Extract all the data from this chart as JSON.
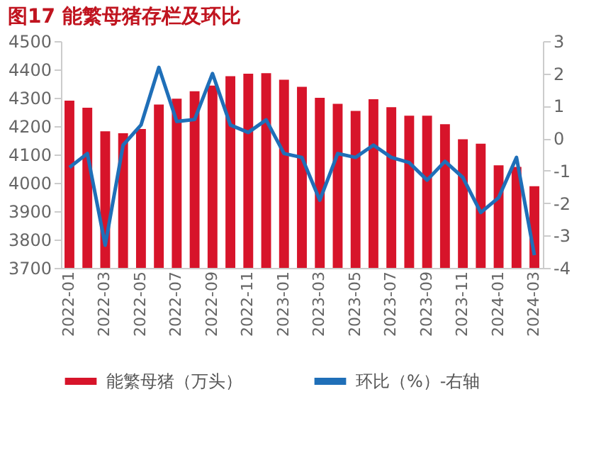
{
  "chart_data": {
    "type": "bar",
    "title": "图17  能繁母猪存栏及环比",
    "categories": [
      "2022-01",
      null,
      "2022-03",
      null,
      "2022-05",
      null,
      "2022-07",
      null,
      "2022-09",
      null,
      "2022-11",
      null,
      "2023-01",
      null,
      "2023-03",
      null,
      "2023-05",
      null,
      "2023-07",
      null,
      "2023-09",
      null,
      "2023-11",
      null,
      "2024-01",
      null,
      "2024-03"
    ],
    "series": [
      {
        "name": "能繁母猪（万头）",
        "color": "#d7142a",
        "values": [
          4290,
          4265,
          4182,
          4175,
          4190,
          4276,
          4297,
          4323,
          4343,
          4376,
          4385,
          4387,
          4364,
          4339,
          4300,
          4279,
          4254,
          4295,
          4267,
          4237,
          4237,
          4207,
          4154,
          4138,
          4062,
          4056,
          3988
        ]
      },
      {
        "name": "环比（%）-右轴",
        "type": "line",
        "axis": "y2",
        "color": "#1f6fb8",
        "values": [
          -0.9,
          -0.47,
          -3.3,
          -0.21,
          0.41,
          2.19,
          0.52,
          0.58,
          2.0,
          0.41,
          0.18,
          0.57,
          -0.47,
          -0.59,
          -1.91,
          -0.47,
          -0.59,
          -0.21,
          -0.59,
          -0.75,
          -1.29,
          -0.71,
          -1.21,
          -2.29,
          -1.83,
          -0.59,
          -3.61
        ]
      }
    ],
    "ylim": [
      3700,
      4500
    ],
    "yticks": [
      3700,
      3800,
      3900,
      4000,
      4100,
      4200,
      4300,
      4400,
      4500
    ],
    "y2lim": [
      -4,
      3
    ],
    "y2ticks": [
      -4,
      -3,
      -2,
      -1,
      0,
      1,
      2,
      3
    ],
    "legend": "bottom",
    "grid": false
  }
}
